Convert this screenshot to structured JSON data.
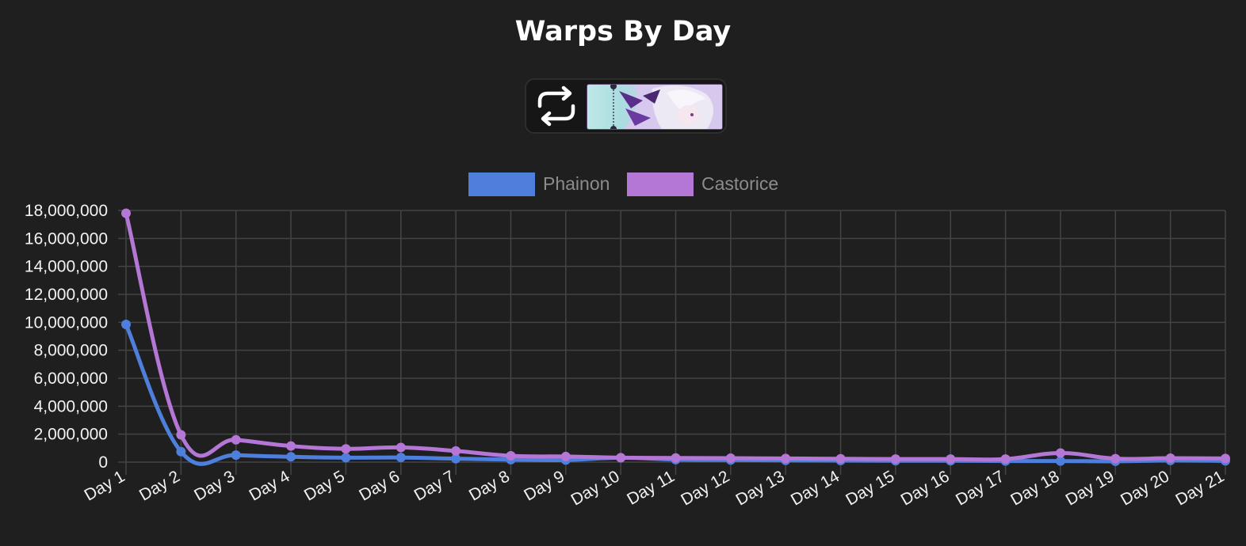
{
  "chart_data": {
    "type": "line",
    "title": "Warps By Day",
    "categories": [
      "Day 1",
      "Day 2",
      "Day 3",
      "Day 4",
      "Day 5",
      "Day 6",
      "Day 7",
      "Day 8",
      "Day 9",
      "Day 10",
      "Day 11",
      "Day 12",
      "Day 13",
      "Day 14",
      "Day 15",
      "Day 16",
      "Day 17",
      "Day 18",
      "Day 19",
      "Day 20",
      "Day 21"
    ],
    "series": [
      {
        "name": "Phainon",
        "color": "#4f7fdc",
        "values": [
          9850000,
          750000,
          500000,
          380000,
          320000,
          330000,
          250000,
          180000,
          150000,
          310000,
          180000,
          150000,
          130000,
          110000,
          100000,
          100000,
          80000,
          80000,
          60000,
          120000,
          90000
        ]
      },
      {
        "name": "Castorice",
        "color": "#b477d6",
        "values": [
          17800000,
          1950000,
          1600000,
          1150000,
          950000,
          1050000,
          800000,
          450000,
          400000,
          320000,
          300000,
          280000,
          260000,
          240000,
          220000,
          220000,
          220000,
          650000,
          250000,
          280000,
          260000
        ]
      }
    ],
    "xlabel": "",
    "ylabel": "",
    "ylim": [
      0,
      18000000
    ],
    "yticks": [
      "0",
      "2,000,000",
      "4,000,000",
      "6,000,000",
      "8,000,000",
      "10,000,000",
      "12,000,000",
      "14,000,000",
      "16,000,000",
      "18,000,000"
    ],
    "grid": true,
    "legend": "top-center"
  },
  "controls": {
    "refresh_icon": "refresh-icon",
    "banner_image": "character-banner"
  }
}
